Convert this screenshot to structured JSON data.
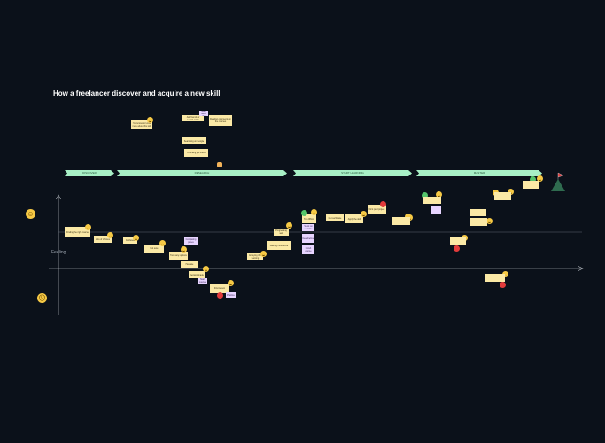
{
  "title": "How a freelancer discover and acquire a new skill",
  "axis": {
    "y_label": "Feeling"
  },
  "phases": [
    {
      "label": "DISCOVER"
    },
    {
      "label": "RESEARCH"
    },
    {
      "label": "START LEARNING"
    },
    {
      "label": "MASTER"
    }
  ],
  "notes": [
    {
      "text": "I’m curious to know more about this skill"
    },
    {
      "text": "Ask friends or search online"
    },
    {
      "text": "See how many hours the courses need"
    },
    {
      "text": "Reading comments on the courses"
    },
    {
      "text": "Searching on Google"
    },
    {
      "text": "Checking job offers"
    },
    {
      "text": "Finding the right course"
    },
    {
      "text": "Lots of choices"
    },
    {
      "text": "Confused"
    },
    {
      "text": "Not sure"
    },
    {
      "text": "Too many options"
    },
    {
      "text": "Comparing prices"
    },
    {
      "text": "Hesitate"
    },
    {
      "text": "Decision made"
    },
    {
      "text": "Start course"
    },
    {
      "text": "First lesson"
    },
    {
      "text": "Practice"
    },
    {
      "text": "Enjoying the learning"
    },
    {
      "text": "Progressing well"
    },
    {
      "text": "Gaining confidence"
    },
    {
      "text": "Too difficult"
    },
    {
      "text": "Stuck on exercise"
    },
    {
      "text": "Overwhelmed"
    },
    {
      "text": "Finish course"
    },
    {
      "text": "Get certificate"
    },
    {
      "text": "Apply the skill"
    },
    {
      "text": "First paid project"
    }
  ]
}
